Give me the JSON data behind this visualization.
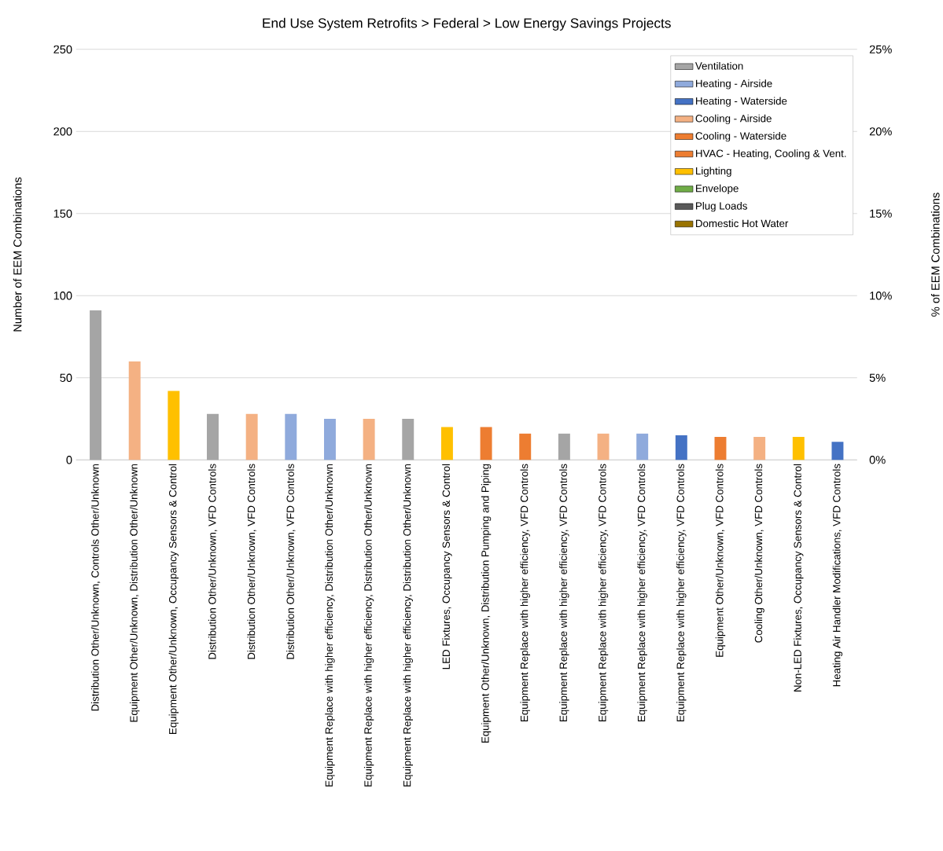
{
  "chart_data": {
    "type": "bar",
    "title": "End Use System Retrofits > Federal > Low Energy Savings Projects",
    "ylabel": "Number of  EEM  Combinations",
    "y2label": "% of EEM Combinations",
    "categories": [
      "Distribution Other/Unknown, Controls Other/Unknown",
      "Equipment Other/Unknown, Distribution Other/Unknown",
      "Equipment Other/Unknown, Occupancy Sensors & Control",
      "Distribution Other/Unknown, VFD Controls",
      "Distribution Other/Unknown, VFD Controls",
      "Distribution Other/Unknown, VFD Controls",
      "Equipment Replace with higher efficiency, Distribution Other/Unknown",
      "Equipment Replace with higher efficiency, Distribution Other/Unknown",
      "Equipment Replace with higher efficiency, Distribution Other/Unknown",
      "LED Fixtures, Occupancy Sensors & Control",
      "Equipment Other/Unknown, Distribution Pumping and Piping",
      "Equipment Replace with higher efficiency, VFD Controls",
      "Equipment Replace with higher efficiency, VFD Controls",
      "Equipment Replace with higher efficiency, VFD Controls",
      "Equipment Replace with higher efficiency, VFD Controls",
      "Equipment Replace with higher efficiency, VFD Controls",
      "Equipment Other/Unknown, VFD Controls",
      "Cooling Other/Unknown, VFD Controls",
      "Non-LED Fixtures, Occupancy Sensors & Control",
      "Heating Air Handler Modifications, VFD Controls"
    ],
    "series": [
      {
        "name": "Ventilation",
        "color": "#a5a5a5",
        "values": [
          91,
          null,
          null,
          28,
          null,
          null,
          null,
          null,
          25,
          null,
          null,
          null,
          16,
          null,
          null,
          null,
          null,
          null,
          null,
          null
        ]
      },
      {
        "name": "Heating - Airside",
        "color": "#8faadc",
        "values": [
          null,
          null,
          null,
          null,
          null,
          28,
          25,
          null,
          null,
          null,
          null,
          null,
          null,
          null,
          16,
          null,
          null,
          null,
          null,
          null
        ]
      },
      {
        "name": "Heating - Waterside",
        "color": "#4472c4",
        "values": [
          null,
          null,
          null,
          null,
          null,
          null,
          null,
          null,
          null,
          null,
          null,
          null,
          null,
          null,
          null,
          15,
          null,
          null,
          null,
          11
        ]
      },
      {
        "name": "Cooling - Airside",
        "color": "#f4b183",
        "values": [
          null,
          60,
          null,
          null,
          28,
          null,
          null,
          25,
          null,
          null,
          null,
          null,
          null,
          16,
          null,
          null,
          null,
          14,
          null,
          null
        ]
      },
      {
        "name": "Cooling - Waterside",
        "color": "#ed7d31",
        "values": [
          null,
          null,
          null,
          null,
          null,
          null,
          null,
          null,
          null,
          null,
          20,
          16,
          null,
          null,
          null,
          null,
          14,
          null,
          null,
          null
        ]
      },
      {
        "name": "HVAC - Heating, Cooling & Vent.",
        "color": "#ed7d31",
        "values": [
          null,
          null,
          null,
          null,
          null,
          null,
          null,
          null,
          null,
          null,
          null,
          null,
          null,
          null,
          null,
          null,
          null,
          null,
          null,
          null
        ]
      },
      {
        "name": "Lighting",
        "color": "#ffc000",
        "values": [
          null,
          null,
          42,
          null,
          null,
          null,
          null,
          null,
          null,
          20,
          null,
          null,
          null,
          null,
          null,
          null,
          null,
          null,
          14,
          null
        ]
      },
      {
        "name": "Envelope",
        "color": "#70ad47",
        "values": [
          null,
          null,
          null,
          null,
          null,
          null,
          null,
          null,
          null,
          null,
          null,
          null,
          null,
          null,
          null,
          null,
          null,
          null,
          null,
          null
        ]
      },
      {
        "name": "Plug Loads",
        "color": "#595959",
        "values": [
          null,
          null,
          null,
          null,
          null,
          null,
          null,
          null,
          null,
          null,
          null,
          null,
          null,
          null,
          null,
          null,
          null,
          null,
          null,
          null
        ]
      },
      {
        "name": "Domestic Hot Water",
        "color": "#997300",
        "values": [
          null,
          null,
          null,
          null,
          null,
          null,
          null,
          null,
          null,
          null,
          null,
          null,
          null,
          null,
          null,
          null,
          null,
          null,
          null,
          null
        ]
      }
    ],
    "ylim": [
      0,
      250
    ],
    "yticks": [
      0,
      50,
      100,
      150,
      200,
      250
    ],
    "y2lim": [
      0,
      25
    ],
    "y2ticks": [
      {
        "value": 0,
        "label": "0%"
      },
      {
        "value": 5,
        "label": "5%"
      },
      {
        "value": 10,
        "label": "10%"
      },
      {
        "value": 15,
        "label": "15%"
      },
      {
        "value": 20,
        "label": "20%"
      },
      {
        "value": 25,
        "label": "25%"
      }
    ],
    "grid": "y",
    "legend": "top right"
  }
}
